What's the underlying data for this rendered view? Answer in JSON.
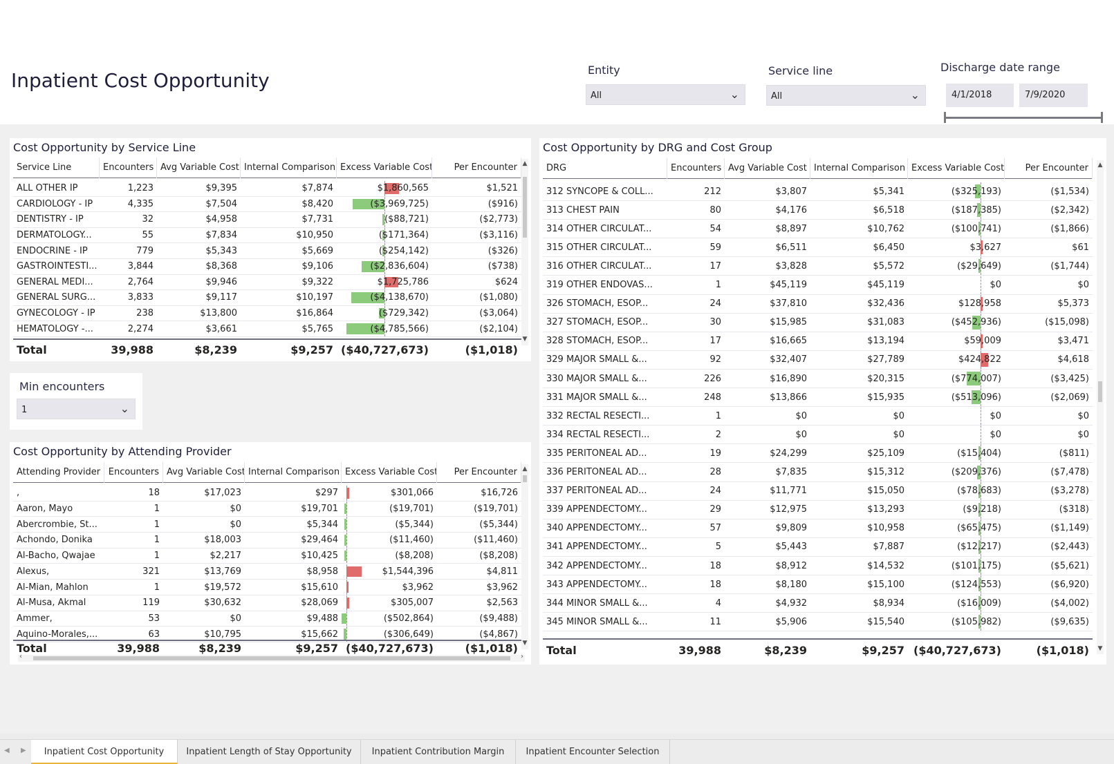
{
  "page_title": "Inpatient Cost Opportunity",
  "filters": {
    "entity": {
      "label": "Entity",
      "value": "All"
    },
    "service_line": {
      "label": "Service line",
      "value": "All"
    },
    "date_range": {
      "label": "Discharge date range",
      "start": "4/1/2018",
      "end": "7/9/2020"
    }
  },
  "min_encounters": {
    "label": "Min encounters",
    "value": "1"
  },
  "service_table": {
    "title": "Cost Opportunity by Service Line",
    "columns": [
      "Service Line",
      "Encounters",
      "Avg Variable Cost",
      "Internal Comparison",
      "Excess Variable Cost",
      "Per Encounter"
    ],
    "rows": [
      {
        "name": "ALL OTHER IP",
        "enc": "1,223",
        "avg": "$9,395",
        "int": "$7,874",
        "excess": "$1,860,565",
        "excess_val": 1860565,
        "per": "$1,521"
      },
      {
        "name": "CARDIOLOGY - IP",
        "enc": "4,335",
        "avg": "$7,504",
        "int": "$8,420",
        "excess": "($3,969,725)",
        "excess_val": -3969725,
        "per": "($916)"
      },
      {
        "name": "DENTISTRY - IP",
        "enc": "32",
        "avg": "$4,958",
        "int": "$7,731",
        "excess": "($88,721)",
        "excess_val": -88721,
        "per": "($2,773)"
      },
      {
        "name": "DERMATOLOGY...",
        "enc": "55",
        "avg": "$7,834",
        "int": "$10,950",
        "excess": "($171,364)",
        "excess_val": -171364,
        "per": "($3,116)"
      },
      {
        "name": "ENDOCRINE - IP",
        "enc": "779",
        "avg": "$5,343",
        "int": "$5,669",
        "excess": "($254,142)",
        "excess_val": -254142,
        "per": "($326)"
      },
      {
        "name": "GASTROINTESTI...",
        "enc": "3,844",
        "avg": "$8,368",
        "int": "$9,106",
        "excess": "($2,836,604)",
        "excess_val": -2836604,
        "per": "($738)"
      },
      {
        "name": "GENERAL MEDI...",
        "enc": "2,764",
        "avg": "$9,946",
        "int": "$9,322",
        "excess": "$1,725,786",
        "excess_val": 1725786,
        "per": "$624"
      },
      {
        "name": "GENERAL SURG...",
        "enc": "3,833",
        "avg": "$9,117",
        "int": "$10,197",
        "excess": "($4,138,670)",
        "excess_val": -4138670,
        "per": "($1,080)"
      },
      {
        "name": "GYNECOLOGY - IP",
        "enc": "238",
        "avg": "$13,800",
        "int": "$16,864",
        "excess": "($729,342)",
        "excess_val": -729342,
        "per": "($3,064)"
      },
      {
        "name": "HEMATOLOGY -...",
        "enc": "2,274",
        "avg": "$3,661",
        "int": "$5,765",
        "excess": "($4,785,566)",
        "excess_val": -4785566,
        "per": "($2,104)"
      }
    ],
    "total": {
      "name": "Total",
      "enc": "39,988",
      "avg": "$8,239",
      "int": "$9,257",
      "excess": "($40,727,673)",
      "per": "($1,018)"
    }
  },
  "provider_table": {
    "title": "Cost Opportunity by Attending Provider",
    "columns": [
      "Attending Provider",
      "Encounters",
      "Avg Variable Cost",
      "Internal Comparison",
      "Excess Variable Cost",
      "Per Encounter"
    ],
    "rows": [
      {
        "name": ",",
        "enc": "18",
        "avg": "$17,023",
        "int": "$297",
        "excess": "$301,066",
        "excess_val": 301066,
        "per": "$16,726"
      },
      {
        "name": "Aaron, Mayo",
        "enc": "1",
        "avg": "$0",
        "int": "$19,701",
        "excess": "($19,701)",
        "excess_val": -19701,
        "per": "($19,701)"
      },
      {
        "name": "Abercrombie, St...",
        "enc": "1",
        "avg": "$0",
        "int": "$5,344",
        "excess": "($5,344)",
        "excess_val": -5344,
        "per": "($5,344)"
      },
      {
        "name": "Achondo, Donika",
        "enc": "1",
        "avg": "$18,003",
        "int": "$29,464",
        "excess": "($11,460)",
        "excess_val": -11460,
        "per": "($11,460)"
      },
      {
        "name": "Al-Bacho, Qwajae",
        "enc": "1",
        "avg": "$2,217",
        "int": "$10,425",
        "excess": "($8,208)",
        "excess_val": -8208,
        "per": "($8,208)"
      },
      {
        "name": "Alexus,",
        "enc": "321",
        "avg": "$13,769",
        "int": "$8,958",
        "excess": "$1,544,396",
        "excess_val": 1544396,
        "per": "$4,811"
      },
      {
        "name": "Al-Mian, Mahlon",
        "enc": "1",
        "avg": "$19,572",
        "int": "$15,610",
        "excess": "$3,962",
        "excess_val": 3962,
        "per": "$3,962"
      },
      {
        "name": "Al-Musa, Akmal",
        "enc": "119",
        "avg": "$30,632",
        "int": "$28,069",
        "excess": "$305,007",
        "excess_val": 305007,
        "per": "$2,563"
      },
      {
        "name": "Ammer,",
        "enc": "53",
        "avg": "$0",
        "int": "$9,488",
        "excess": "($502,864)",
        "excess_val": -502864,
        "per": "($9,488)"
      },
      {
        "name": "Aquino-Morales,...",
        "enc": "63",
        "avg": "$10,795",
        "int": "$15,662",
        "excess": "($306,649)",
        "excess_val": -306649,
        "per": "($4,867)"
      }
    ],
    "total": {
      "name": "Total",
      "enc": "39,988",
      "avg": "$8,239",
      "int": "$9,257",
      "excess": "($40,727,673)",
      "per": "($1,018)"
    }
  },
  "drg_table": {
    "title": "Cost Opportunity by DRG and Cost Group",
    "columns": [
      "DRG",
      "Encounters",
      "Avg Variable Cost",
      "Internal Comparison",
      "Excess Variable Cost",
      "Per Encounter"
    ],
    "rows": [
      {
        "name": "312 SYNCOPE & COLL...",
        "enc": "212",
        "avg": "$3,807",
        "int": "$5,341",
        "excess": "($325,193)",
        "excess_val": -325193,
        "per": "($1,534)"
      },
      {
        "name": "313 CHEST PAIN",
        "enc": "80",
        "avg": "$4,176",
        "int": "$6,518",
        "excess": "($187,385)",
        "excess_val": -187385,
        "per": "($2,342)"
      },
      {
        "name": "314 OTHER CIRCULAT...",
        "enc": "54",
        "avg": "$8,897",
        "int": "$10,762",
        "excess": "($100,741)",
        "excess_val": -100741,
        "per": "($1,866)"
      },
      {
        "name": "315 OTHER CIRCULAT...",
        "enc": "59",
        "avg": "$6,511",
        "int": "$6,450",
        "excess": "$3,627",
        "excess_val": 3627,
        "per": "$61"
      },
      {
        "name": "316 OTHER CIRCULAT...",
        "enc": "17",
        "avg": "$3,828",
        "int": "$5,572",
        "excess": "($29,649)",
        "excess_val": -29649,
        "per": "($1,744)"
      },
      {
        "name": "319 OTHER ENDOVAS...",
        "enc": "1",
        "avg": "$45,119",
        "int": "$45,119",
        "excess": "$0",
        "excess_val": 0,
        "per": "$0"
      },
      {
        "name": "326 STOMACH, ESOP...",
        "enc": "24",
        "avg": "$37,810",
        "int": "$32,436",
        "excess": "$128,958",
        "excess_val": 128958,
        "per": "$5,373"
      },
      {
        "name": "327 STOMACH, ESOP...",
        "enc": "30",
        "avg": "$15,985",
        "int": "$31,083",
        "excess": "($452,936)",
        "excess_val": -452936,
        "per": "($15,098)"
      },
      {
        "name": "328 STOMACH, ESOP...",
        "enc": "17",
        "avg": "$16,665",
        "int": "$13,194",
        "excess": "$59,009",
        "excess_val": 59009,
        "per": "$3,471"
      },
      {
        "name": "329 MAJOR SMALL &...",
        "enc": "92",
        "avg": "$32,407",
        "int": "$27,789",
        "excess": "$424,822",
        "excess_val": 424822,
        "per": "$4,618"
      },
      {
        "name": "330 MAJOR SMALL &...",
        "enc": "226",
        "avg": "$16,890",
        "int": "$20,315",
        "excess": "($774,007)",
        "excess_val": -774007,
        "per": "($3,425)"
      },
      {
        "name": "331 MAJOR SMALL &...",
        "enc": "248",
        "avg": "$13,866",
        "int": "$15,935",
        "excess": "($513,096)",
        "excess_val": -513096,
        "per": "($2,069)"
      },
      {
        "name": "332 RECTAL RESECTI...",
        "enc": "1",
        "avg": "$0",
        "int": "$0",
        "excess": "$0",
        "excess_val": 0,
        "per": "$0"
      },
      {
        "name": "334 RECTAL RESECTI...",
        "enc": "2",
        "avg": "$0",
        "int": "$0",
        "excess": "$0",
        "excess_val": 0,
        "per": "$0"
      },
      {
        "name": "335 PERITONEAL AD...",
        "enc": "19",
        "avg": "$24,299",
        "int": "$25,109",
        "excess": "($15,404)",
        "excess_val": -15404,
        "per": "($811)"
      },
      {
        "name": "336 PERITONEAL AD...",
        "enc": "28",
        "avg": "$7,835",
        "int": "$15,312",
        "excess": "($209,376)",
        "excess_val": -209376,
        "per": "($7,478)"
      },
      {
        "name": "337 PERITONEAL AD...",
        "enc": "24",
        "avg": "$11,771",
        "int": "$15,050",
        "excess": "($78,683)",
        "excess_val": -78683,
        "per": "($3,278)"
      },
      {
        "name": "339 APPENDECTOMY...",
        "enc": "29",
        "avg": "$12,975",
        "int": "$13,293",
        "excess": "($9,218)",
        "excess_val": -9218,
        "per": "($318)"
      },
      {
        "name": "340 APPENDECTOMY...",
        "enc": "57",
        "avg": "$9,809",
        "int": "$10,958",
        "excess": "($65,475)",
        "excess_val": -65475,
        "per": "($1,149)"
      },
      {
        "name": "341 APPENDECTOMY...",
        "enc": "5",
        "avg": "$5,443",
        "int": "$7,887",
        "excess": "($12,217)",
        "excess_val": -12217,
        "per": "($2,443)"
      },
      {
        "name": "342 APPENDECTOMY...",
        "enc": "18",
        "avg": "$8,912",
        "int": "$14,532",
        "excess": "($101,175)",
        "excess_val": -101175,
        "per": "($5,621)"
      },
      {
        "name": "343 APPENDECTOMY...",
        "enc": "18",
        "avg": "$8,180",
        "int": "$15,100",
        "excess": "($124,553)",
        "excess_val": -124553,
        "per": "($6,920)"
      },
      {
        "name": "344 MINOR SMALL &...",
        "enc": "4",
        "avg": "$4,932",
        "int": "$8,934",
        "excess": "($16,009)",
        "excess_val": -16009,
        "per": "($4,002)"
      },
      {
        "name": "345 MINOR SMALL &...",
        "enc": "11",
        "avg": "$5,906",
        "int": "$15,540",
        "excess": "($105,982)",
        "excess_val": -105982,
        "per": "($9,635)"
      }
    ],
    "total": {
      "name": "Total",
      "enc": "39,988",
      "avg": "$8,239",
      "int": "$9,257",
      "excess": "($40,727,673)",
      "per": "($1,018)"
    }
  },
  "tabs": [
    "Inpatient Cost Opportunity",
    "Inpatient Length of Stay Opportunity",
    "Inpatient Contribution Margin",
    "Inpatient Encounter Selection"
  ],
  "colors": {
    "positive_bar": "#e06b6b",
    "negative_bar": "#8ccb7c",
    "title_text": "#1e1e3c",
    "active_tab_underline": "#e8b53a"
  }
}
